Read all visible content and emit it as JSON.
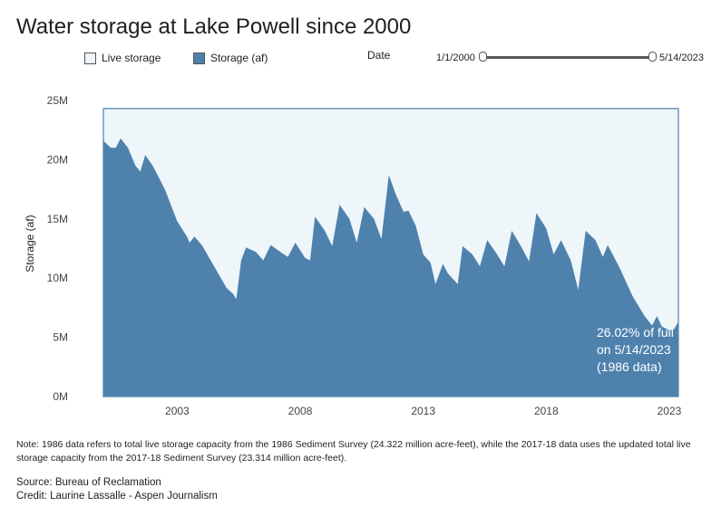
{
  "header": {
    "title": "Water storage at Lake Powell since 2000"
  },
  "legend": {
    "items": [
      {
        "label": "Live storage",
        "color": "#eef6fa"
      },
      {
        "label": "Storage (af)",
        "color": "#4e82ad"
      }
    ]
  },
  "date_filter": {
    "label": "Date",
    "min": "1/1/2000",
    "max": "5/14/2023"
  },
  "annotation": {
    "line1": "26.02% of full",
    "line2": "on 5/14/2023",
    "line3": "(1986 data)"
  },
  "footer": {
    "note": "Note: 1986 data refers to total live storage capacity from the 1986 Sediment Survey (24.322 million acre-feet), while the 2017-18 data uses the updated total live storage capacity from the 2017-18 Sediment Survey (23.314 million acre-feet).",
    "source": "Source: Bureau of Reclamation",
    "credit": "Credit: Laurine Lassalle - Aspen Journalism"
  },
  "chart_data": {
    "type": "area",
    "ylabel": "Storage (af)",
    "ylim": [
      0,
      25000000
    ],
    "yticks": [
      0,
      5000000,
      10000000,
      15000000,
      20000000,
      25000000
    ],
    "ytick_labels": [
      "0M",
      "5M",
      "10M",
      "15M",
      "20M",
      "25M"
    ],
    "xlim": [
      2000.0,
      2023.37
    ],
    "xticks": [
      2003,
      2008,
      2013,
      2018,
      2023
    ],
    "xtick_labels": [
      "2003",
      "2008",
      "2013",
      "2018",
      "2023"
    ],
    "series": [
      {
        "name": "Live storage",
        "color": "#eef6fa",
        "values": [
          [
            2000.0,
            24322000
          ],
          [
            2023.37,
            24322000
          ]
        ]
      },
      {
        "name": "Storage (af)",
        "color": "#4e82ad",
        "values": [
          [
            2000.0,
            21600000
          ],
          [
            2000.3,
            21000000
          ],
          [
            2000.5,
            21000000
          ],
          [
            2000.7,
            21800000
          ],
          [
            2001.0,
            21000000
          ],
          [
            2001.3,
            19500000
          ],
          [
            2001.5,
            19000000
          ],
          [
            2001.7,
            20400000
          ],
          [
            2002.0,
            19500000
          ],
          [
            2002.5,
            17500000
          ],
          [
            2003.0,
            14800000
          ],
          [
            2003.4,
            13500000
          ],
          [
            2003.5,
            13000000
          ],
          [
            2003.7,
            13500000
          ],
          [
            2004.0,
            12800000
          ],
          [
            2004.5,
            11000000
          ],
          [
            2005.0,
            9200000
          ],
          [
            2005.3,
            8600000
          ],
          [
            2005.4,
            8200000
          ],
          [
            2005.6,
            11500000
          ],
          [
            2005.8,
            12600000
          ],
          [
            2006.2,
            12200000
          ],
          [
            2006.5,
            11500000
          ],
          [
            2006.8,
            12800000
          ],
          [
            2007.2,
            12200000
          ],
          [
            2007.5,
            11800000
          ],
          [
            2007.8,
            13000000
          ],
          [
            2008.2,
            11700000
          ],
          [
            2008.4,
            11500000
          ],
          [
            2008.6,
            15200000
          ],
          [
            2009.0,
            14000000
          ],
          [
            2009.3,
            12700000
          ],
          [
            2009.6,
            16200000
          ],
          [
            2010.0,
            15000000
          ],
          [
            2010.3,
            13000000
          ],
          [
            2010.6,
            16000000
          ],
          [
            2011.0,
            15000000
          ],
          [
            2011.3,
            13300000
          ],
          [
            2011.6,
            18700000
          ],
          [
            2011.9,
            17000000
          ],
          [
            2012.2,
            15600000
          ],
          [
            2012.4,
            15700000
          ],
          [
            2012.7,
            14400000
          ],
          [
            2013.0,
            12000000
          ],
          [
            2013.3,
            11300000
          ],
          [
            2013.5,
            9500000
          ],
          [
            2013.8,
            11200000
          ],
          [
            2014.0,
            10400000
          ],
          [
            2014.4,
            9500000
          ],
          [
            2014.6,
            12700000
          ],
          [
            2015.0,
            12000000
          ],
          [
            2015.3,
            11000000
          ],
          [
            2015.6,
            13200000
          ],
          [
            2016.0,
            12000000
          ],
          [
            2016.3,
            11000000
          ],
          [
            2016.6,
            14000000
          ],
          [
            2017.0,
            12600000
          ],
          [
            2017.3,
            11400000
          ],
          [
            2017.6,
            15500000
          ],
          [
            2018.0,
            14200000
          ],
          [
            2018.3,
            12000000
          ],
          [
            2018.6,
            13200000
          ],
          [
            2019.0,
            11500000
          ],
          [
            2019.3,
            9000000
          ],
          [
            2019.6,
            14000000
          ],
          [
            2020.0,
            13200000
          ],
          [
            2020.3,
            11800000
          ],
          [
            2020.5,
            12800000
          ],
          [
            2021.0,
            10800000
          ],
          [
            2021.5,
            8500000
          ],
          [
            2022.0,
            6800000
          ],
          [
            2022.3,
            6000000
          ],
          [
            2022.5,
            6800000
          ],
          [
            2022.7,
            5900000
          ],
          [
            2023.0,
            5600000
          ],
          [
            2023.2,
            5700000
          ],
          [
            2023.37,
            6330000
          ]
        ]
      }
    ]
  }
}
